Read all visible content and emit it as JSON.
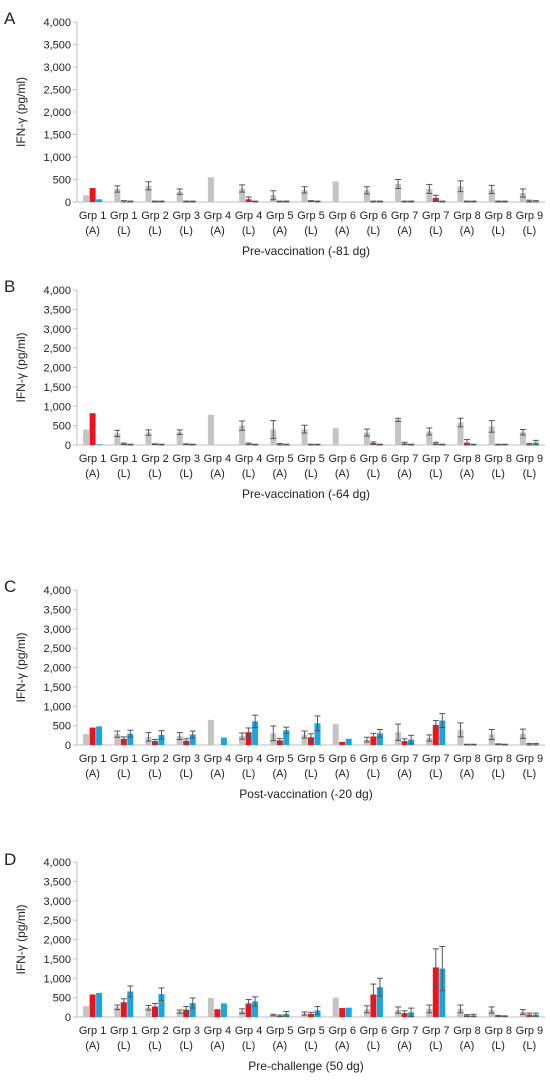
{
  "colors": {
    "gray": "#c4c4c4",
    "red": "#e8161c",
    "blue": "#1aa5de",
    "err": "#555555",
    "axis": "#bfbfbf"
  },
  "chart_data": [
    {
      "panel": "A",
      "type": "bar",
      "xlabel": "Pre-vaccination (-81 dg)",
      "ylabel": "IFN-γ (pg/ml)",
      "ylim": [
        0,
        4000
      ],
      "yticks": [
        "0",
        "500",
        "1,000",
        "1,500",
        "2,000",
        "2,500",
        "3,000",
        "3,500",
        "4,000"
      ],
      "categories": [
        [
          "Grp 1",
          "(A)"
        ],
        [
          "Grp 1",
          "(L)"
        ],
        [
          "Grp 2",
          "(L)"
        ],
        [
          "Grp 3",
          "(L)"
        ],
        [
          "Grp 4",
          "(A)"
        ],
        [
          "Grp 4",
          "(L)"
        ],
        [
          "Grp 5",
          "(A)"
        ],
        [
          "Grp 5",
          "(L)"
        ],
        [
          "Grp 6",
          "(A)"
        ],
        [
          "Grp 6",
          "(L)"
        ],
        [
          "Grp 7",
          "(A)"
        ],
        [
          "Grp 7",
          "(L)"
        ],
        [
          "Grp 8",
          "(A)"
        ],
        [
          "Grp 8",
          "(L)"
        ],
        [
          "Grp 9",
          "(L)"
        ]
      ],
      "series": [
        {
          "values": [
            150,
            290,
            360,
            230,
            550,
            300,
            150,
            270,
            460,
            260,
            400,
            290,
            350,
            280,
            200
          ],
          "err": [
            0,
            70,
            90,
            60,
            0,
            80,
            100,
            70,
            0,
            80,
            100,
            100,
            120,
            90,
            90
          ]
        },
        {
          "values": [
            310,
            10,
            10,
            10,
            0,
            60,
            10,
            20,
            0,
            10,
            10,
            90,
            10,
            10,
            20
          ],
          "err": [
            0,
            20,
            10,
            10,
            0,
            50,
            10,
            10,
            0,
            10,
            10,
            60,
            10,
            10,
            20
          ]
        },
        {
          "values": [
            60,
            10,
            10,
            10,
            0,
            10,
            10,
            10,
            0,
            10,
            10,
            10,
            10,
            10,
            10
          ],
          "err": [
            0,
            10,
            10,
            10,
            0,
            10,
            10,
            10,
            0,
            10,
            10,
            10,
            10,
            10,
            20
          ]
        }
      ]
    },
    {
      "panel": "B",
      "type": "bar",
      "xlabel": "Pre-vaccination (-64 dg)",
      "ylabel": "IFN-γ (pg/ml)",
      "ylim": [
        0,
        4000
      ],
      "yticks": [
        "0",
        "500",
        "1,000",
        "1,500",
        "2,000",
        "2,500",
        "3,000",
        "3,500",
        "4,000"
      ],
      "categories": [
        [
          "Grp 1",
          "(A)"
        ],
        [
          "Grp 1",
          "(L)"
        ],
        [
          "Grp 2",
          "(L)"
        ],
        [
          "Grp 3",
          "(L)"
        ],
        [
          "Grp 4",
          "(A)"
        ],
        [
          "Grp 4",
          "(L)"
        ],
        [
          "Grp 5",
          "(A)"
        ],
        [
          "Grp 5",
          "(L)"
        ],
        [
          "Grp 6",
          "(A)"
        ],
        [
          "Grp 6",
          "(L)"
        ],
        [
          "Grp 7",
          "(A)"
        ],
        [
          "Grp 7",
          "(L)"
        ],
        [
          "Grp 8",
          "(A)"
        ],
        [
          "Grp 8",
          "(L)"
        ],
        [
          "Grp 9",
          "(L)"
        ]
      ],
      "series": [
        {
          "values": [
            400,
            300,
            320,
            330,
            780,
            500,
            400,
            410,
            440,
            320,
            650,
            350,
            580,
            480,
            330
          ],
          "err": [
            0,
            80,
            70,
            60,
            0,
            120,
            230,
            100,
            0,
            90,
            40,
            90,
            110,
            150,
            70
          ]
        },
        {
          "values": [
            820,
            30,
            20,
            20,
            0,
            30,
            20,
            10,
            0,
            50,
            40,
            40,
            60,
            10,
            20
          ],
          "err": [
            0,
            20,
            10,
            10,
            0,
            20,
            20,
            10,
            0,
            30,
            30,
            30,
            80,
            10,
            20
          ]
        },
        {
          "values": [
            20,
            10,
            10,
            10,
            0,
            10,
            10,
            10,
            0,
            10,
            10,
            10,
            10,
            10,
            60
          ],
          "err": [
            0,
            10,
            10,
            10,
            0,
            10,
            10,
            10,
            0,
            10,
            10,
            10,
            10,
            10,
            60
          ]
        }
      ]
    },
    {
      "panel": "C",
      "type": "bar",
      "xlabel": "Post-vaccination (-20 dg)",
      "ylabel": "IFN-γ (pg/ml)",
      "ylim": [
        0,
        4000
      ],
      "yticks": [
        "0",
        "500",
        "1,000",
        "1,500",
        "2,000",
        "2,500",
        "3,000",
        "3,500",
        "4,000"
      ],
      "categories": [
        [
          "Grp 1",
          "(A)"
        ],
        [
          "Grp 1",
          "(L)"
        ],
        [
          "Grp 2",
          "(L)"
        ],
        [
          "Grp 3",
          "(L)"
        ],
        [
          "Grp 4",
          "(A)"
        ],
        [
          "Grp 4",
          "(L)"
        ],
        [
          "Grp 5",
          "(A)"
        ],
        [
          "Grp 5",
          "(L)"
        ],
        [
          "Grp 6",
          "(A)"
        ],
        [
          "Grp 6",
          "(L)"
        ],
        [
          "Grp 7",
          "(A)"
        ],
        [
          "Grp 7",
          "(L)"
        ],
        [
          "Grp 8",
          "(A)"
        ],
        [
          "Grp 8",
          "(L)"
        ],
        [
          "Grp 9",
          "(L)"
        ]
      ],
      "series": [
        {
          "values": [
            280,
            280,
            210,
            230,
            650,
            230,
            300,
            270,
            540,
            140,
            330,
            180,
            390,
            270,
            290
          ],
          "err": [
            0,
            80,
            110,
            90,
            0,
            80,
            190,
            90,
            0,
            60,
            210,
            80,
            180,
            130,
            120
          ]
        },
        {
          "values": [
            450,
            160,
            100,
            110,
            0,
            330,
            120,
            200,
            80,
            220,
            100,
            520,
            10,
            20,
            20
          ],
          "err": [
            0,
            50,
            40,
            50,
            0,
            110,
            50,
            90,
            0,
            80,
            60,
            110,
            10,
            10,
            20
          ]
        },
        {
          "values": [
            480,
            290,
            260,
            270,
            190,
            610,
            380,
            560,
            160,
            300,
            140,
            630,
            10,
            10,
            20
          ],
          "err": [
            0,
            90,
            110,
            90,
            0,
            160,
            80,
            190,
            0,
            100,
            110,
            180,
            10,
            10,
            20
          ]
        }
      ]
    },
    {
      "panel": "D",
      "type": "bar",
      "xlabel": "Pre-challenge (50 dg)",
      "ylabel": "IFN-γ (pg/ml)",
      "ylim": [
        0,
        4000
      ],
      "yticks": [
        "0",
        "500",
        "1,000",
        "1,500",
        "2,000",
        "2,500",
        "3,000",
        "3,500",
        "4,000"
      ],
      "categories": [
        [
          "Grp 1",
          "(A)"
        ],
        [
          "Grp 1",
          "(L)"
        ],
        [
          "Grp 2",
          "(L)"
        ],
        [
          "Grp 3",
          "(L)"
        ],
        [
          "Grp 4",
          "(A)"
        ],
        [
          "Grp 4",
          "(L)"
        ],
        [
          "Grp 5",
          "(A)"
        ],
        [
          "Grp 5",
          "(L)"
        ],
        [
          "Grp 6",
          "(A)"
        ],
        [
          "Grp 6",
          "(L)"
        ],
        [
          "Grp 7",
          "(A)"
        ],
        [
          "Grp 7",
          "(L)"
        ],
        [
          "Grp 8",
          "(A)"
        ],
        [
          "Grp 8",
          "(L)"
        ],
        [
          "Grp 9",
          "(L)"
        ]
      ],
      "series": [
        {
          "values": [
            280,
            250,
            240,
            140,
            490,
            150,
            50,
            90,
            500,
            200,
            180,
            210,
            210,
            180,
            130
          ],
          "err": [
            0,
            60,
            60,
            40,
            0,
            60,
            20,
            40,
            0,
            90,
            80,
            100,
            100,
            80,
            60
          ]
        },
        {
          "values": [
            580,
            380,
            270,
            190,
            200,
            350,
            30,
            80,
            230,
            580,
            100,
            1280,
            40,
            30,
            60
          ],
          "err": [
            0,
            90,
            80,
            80,
            0,
            100,
            20,
            40,
            0,
            270,
            60,
            480,
            20,
            10,
            40
          ]
        },
        {
          "values": [
            620,
            660,
            590,
            360,
            350,
            400,
            80,
            170,
            240,
            770,
            120,
            1250,
            40,
            20,
            60
          ],
          "err": [
            0,
            140,
            160,
            130,
            0,
            120,
            60,
            100,
            0,
            230,
            110,
            570,
            30,
            10,
            40
          ]
        }
      ]
    }
  ]
}
